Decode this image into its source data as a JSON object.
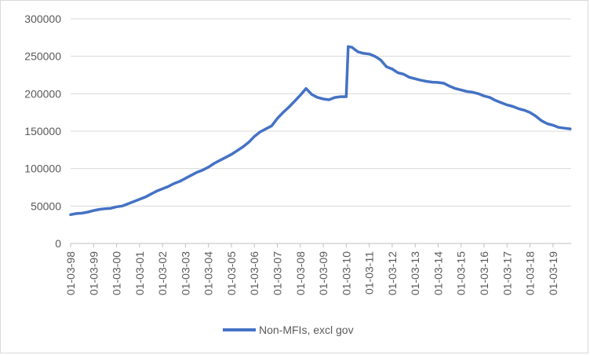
{
  "chart_data": {
    "type": "line",
    "title": "",
    "xlabel": "",
    "ylabel": "",
    "ylim": [
      0,
      300000
    ],
    "yticks": [
      0,
      50000,
      100000,
      150000,
      200000,
      250000,
      300000
    ],
    "ytick_labels": [
      "0",
      "50000",
      "100000",
      "150000",
      "200000",
      "250000",
      "300000"
    ],
    "xtick_labels": [
      "01-03-98",
      "01-03-99",
      "01-03-00",
      "01-03-01",
      "01-03-02",
      "01-03-03",
      "01-03-04",
      "01-03-05",
      "01-03-06",
      "01-03-07",
      "01-03-08",
      "01-03-09",
      "01-03-10",
      "01-03-11",
      "01-03-12",
      "01-03-13",
      "01-03-14",
      "01-03-15",
      "01-03-16",
      "01-03-17",
      "01-03-18",
      "01-03-19"
    ],
    "grid": "horizontal",
    "legend_position": "bottom",
    "line_color": "#4472C4",
    "grid_color": "#d9d9d9",
    "axis_color": "#bfbfbf",
    "series": [
      {
        "name": "Non-MFIs, excl gov",
        "x": [
          "1998-03",
          "1998-06",
          "1998-09",
          "1998-12",
          "1999-03",
          "1999-06",
          "1999-09",
          "1999-12",
          "2000-03",
          "2000-06",
          "2000-09",
          "2000-12",
          "2001-03",
          "2001-06",
          "2001-09",
          "2001-12",
          "2002-03",
          "2002-06",
          "2002-09",
          "2002-12",
          "2003-03",
          "2003-06",
          "2003-09",
          "2003-12",
          "2004-03",
          "2004-06",
          "2004-09",
          "2004-12",
          "2005-03",
          "2005-06",
          "2005-09",
          "2005-12",
          "2006-03",
          "2006-06",
          "2006-09",
          "2006-12",
          "2007-03",
          "2007-06",
          "2007-09",
          "2007-12",
          "2008-03",
          "2008-06",
          "2008-09",
          "2008-12",
          "2009-03",
          "2009-06",
          "2009-09",
          "2009-12",
          "2010-03",
          "2010-04",
          "2010-06",
          "2010-09",
          "2010-12",
          "2011-03",
          "2011-06",
          "2011-09",
          "2011-12",
          "2012-03",
          "2012-06",
          "2012-09",
          "2012-12",
          "2013-03",
          "2013-06",
          "2013-09",
          "2013-12",
          "2014-03",
          "2014-06",
          "2014-09",
          "2014-12",
          "2015-03",
          "2015-06",
          "2015-09",
          "2015-12",
          "2016-03",
          "2016-06",
          "2016-09",
          "2016-12",
          "2017-03",
          "2017-06",
          "2017-09",
          "2017-12",
          "2018-03",
          "2018-06",
          "2018-09",
          "2018-12",
          "2019-03",
          "2019-06",
          "2019-09",
          "2019-12"
        ],
        "values": [
          38500,
          40000,
          40500,
          42000,
          44000,
          45500,
          46500,
          47000,
          49000,
          50000,
          53000,
          56000,
          59000,
          62000,
          66000,
          70000,
          73000,
          76000,
          80000,
          83000,
          87000,
          91000,
          95000,
          98000,
          102000,
          107000,
          111000,
          115000,
          119000,
          124000,
          129000,
          135000,
          143000,
          149000,
          153000,
          157000,
          167000,
          175000,
          182000,
          190000,
          198000,
          207000,
          199000,
          195000,
          193000,
          192000,
          195000,
          196000,
          196000,
          263000,
          262000,
          256000,
          254000,
          253000,
          250000,
          245000,
          236000,
          233000,
          228000,
          226000,
          222000,
          220000,
          218000,
          216500,
          215500,
          215000,
          214000,
          210000,
          207000,
          205000,
          203000,
          202000,
          200000,
          197000,
          195000,
          191000,
          188000,
          185000,
          183000,
          180000,
          178000,
          175000,
          170000,
          164000,
          160000,
          158000,
          155000,
          154000,
          153000
        ]
      }
    ]
  }
}
